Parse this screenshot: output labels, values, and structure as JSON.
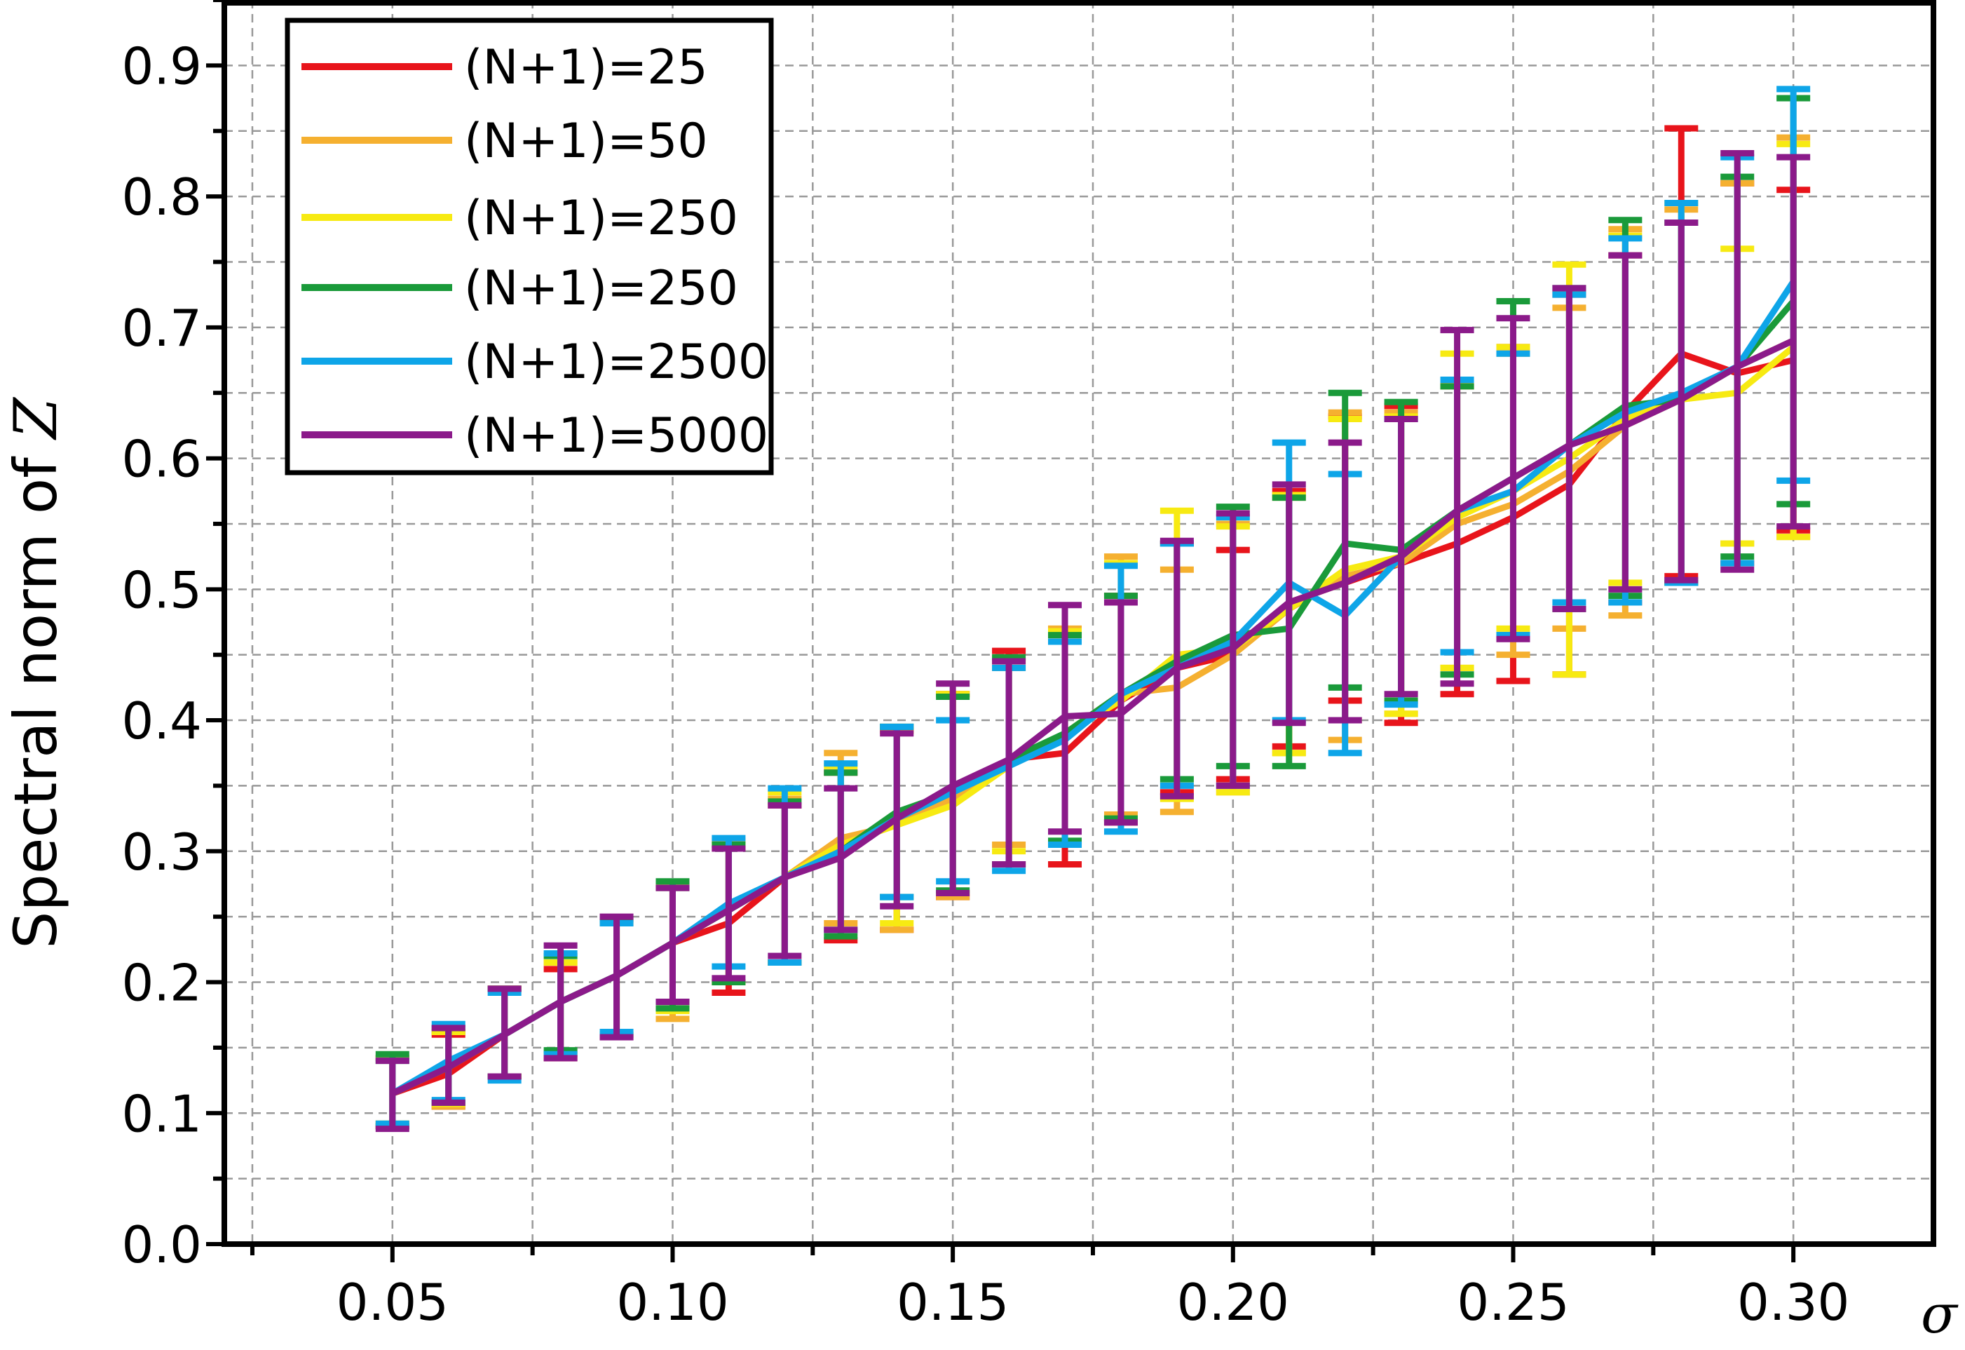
{
  "chart_data": {
    "type": "line",
    "title": "",
    "xlabel": "σ",
    "ylabel": "Spectral norm of ",
    "ylabel_symbol": "Z",
    "xlim": [
      0.02,
      0.325
    ],
    "ylim": [
      0.0,
      0.95
    ],
    "xticks": [
      "0.05",
      "0.10",
      "0.15",
      "0.20",
      "0.25",
      "0.30"
    ],
    "yticks": [
      "0.0",
      "0.1",
      "0.2",
      "0.3",
      "0.4",
      "0.5",
      "0.6",
      "0.7",
      "0.8",
      "0.9"
    ],
    "grid": true,
    "legend_placement": "top-left",
    "error_bars": true,
    "x": [
      0.05,
      0.06,
      0.07,
      0.08,
      0.09,
      0.1,
      0.11,
      0.12,
      0.13,
      0.14,
      0.15,
      0.16,
      0.17,
      0.18,
      0.19,
      0.2,
      0.21,
      0.22,
      0.23,
      0.24,
      0.25,
      0.26,
      0.27,
      0.28,
      0.29,
      0.3
    ],
    "series": [
      {
        "name": "(N+1)=25",
        "color": "#e8141b",
        "values": [
          0.115,
          0.13,
          0.16,
          0.185,
          0.205,
          0.23,
          0.245,
          0.28,
          0.3,
          0.325,
          0.345,
          0.37,
          0.375,
          0.415,
          0.44,
          0.45,
          0.49,
          0.505,
          0.52,
          0.535,
          0.555,
          0.58,
          0.635,
          0.68,
          0.665,
          0.675
        ],
        "lower": [
          0.09,
          0.105,
          0.128,
          0.142,
          0.158,
          0.18,
          0.192,
          0.215,
          0.232,
          0.24,
          0.265,
          0.29,
          0.29,
          0.322,
          0.345,
          0.355,
          0.38,
          0.415,
          0.398,
          0.42,
          0.43,
          0.435,
          0.49,
          0.51,
          0.52,
          0.545
        ],
        "upper": [
          0.142,
          0.16,
          0.195,
          0.21,
          0.248,
          0.272,
          0.302,
          0.335,
          0.36,
          0.392,
          0.42,
          0.453,
          0.465,
          0.495,
          0.535,
          0.53,
          0.575,
          0.632,
          0.64,
          0.655,
          0.685,
          0.725,
          0.755,
          0.852,
          0.81,
          0.805
        ]
      },
      {
        "name": "(N+1)=50",
        "color": "#f5b030",
        "values": [
          0.115,
          0.135,
          0.16,
          0.185,
          0.205,
          0.23,
          0.255,
          0.28,
          0.31,
          0.32,
          0.34,
          0.365,
          0.39,
          0.42,
          0.425,
          0.45,
          0.485,
          0.51,
          0.52,
          0.55,
          0.565,
          0.59,
          0.625,
          0.645,
          0.67,
          0.69
        ],
        "lower": [
          0.092,
          0.105,
          0.128,
          0.145,
          0.16,
          0.172,
          0.2,
          0.215,
          0.245,
          0.24,
          0.265,
          0.305,
          0.305,
          0.328,
          0.33,
          0.345,
          0.375,
          0.385,
          0.405,
          0.44,
          0.45,
          0.47,
          0.48,
          0.505,
          0.535,
          0.54
        ],
        "upper": [
          0.142,
          0.162,
          0.195,
          0.215,
          0.245,
          0.275,
          0.308,
          0.34,
          0.375,
          0.395,
          0.42,
          0.44,
          0.47,
          0.525,
          0.515,
          0.55,
          0.57,
          0.635,
          0.635,
          0.655,
          0.68,
          0.715,
          0.775,
          0.79,
          0.81,
          0.845
        ]
      },
      {
        "name": "(N+1)=250",
        "color": "#f7ea12",
        "values": [
          0.115,
          0.135,
          0.16,
          0.185,
          0.205,
          0.23,
          0.255,
          0.28,
          0.305,
          0.32,
          0.335,
          0.365,
          0.39,
          0.415,
          0.45,
          0.455,
          0.485,
          0.515,
          0.525,
          0.555,
          0.575,
          0.6,
          0.63,
          0.645,
          0.65,
          0.685
        ],
        "lower": [
          0.092,
          0.107,
          0.128,
          0.145,
          0.16,
          0.178,
          0.2,
          0.215,
          0.24,
          0.245,
          0.268,
          0.3,
          0.305,
          0.325,
          0.34,
          0.345,
          0.375,
          0.4,
          0.405,
          0.44,
          0.47,
          0.435,
          0.505,
          0.505,
          0.535,
          0.54
        ],
        "upper": [
          0.14,
          0.162,
          0.195,
          0.215,
          0.245,
          0.272,
          0.305,
          0.345,
          0.365,
          0.392,
          0.42,
          0.445,
          0.468,
          0.52,
          0.56,
          0.548,
          0.572,
          0.63,
          0.632,
          0.68,
          0.685,
          0.748,
          0.77,
          0.795,
          0.76,
          0.84
        ]
      },
      {
        "name": "(N+1)=250",
        "color": "#1a9a3a",
        "values": [
          0.115,
          0.135,
          0.16,
          0.185,
          0.205,
          0.23,
          0.255,
          0.28,
          0.3,
          0.33,
          0.345,
          0.37,
          0.39,
          0.42,
          0.445,
          0.465,
          0.47,
          0.535,
          0.53,
          0.56,
          0.585,
          0.61,
          0.64,
          0.645,
          0.67,
          0.72
        ],
        "lower": [
          0.09,
          0.108,
          0.128,
          0.148,
          0.16,
          0.18,
          0.2,
          0.215,
          0.235,
          0.265,
          0.27,
          0.29,
          0.308,
          0.325,
          0.355,
          0.365,
          0.365,
          0.425,
          0.415,
          0.435,
          0.465,
          0.485,
          0.495,
          0.505,
          0.525,
          0.565
        ],
        "upper": [
          0.145,
          0.165,
          0.195,
          0.22,
          0.248,
          0.277,
          0.305,
          0.338,
          0.36,
          0.395,
          0.418,
          0.448,
          0.465,
          0.495,
          0.535,
          0.563,
          0.57,
          0.65,
          0.643,
          0.655,
          0.72,
          0.73,
          0.782,
          0.78,
          0.815,
          0.875
        ]
      },
      {
        "name": "(N+1)=2500",
        "color": "#0ea5e8",
        "values": [
          0.115,
          0.14,
          0.16,
          0.185,
          0.205,
          0.23,
          0.26,
          0.28,
          0.3,
          0.325,
          0.345,
          0.365,
          0.385,
          0.42,
          0.44,
          0.46,
          0.505,
          0.48,
          0.525,
          0.56,
          0.575,
          0.61,
          0.635,
          0.65,
          0.67,
          0.735
        ],
        "lower": [
          0.092,
          0.11,
          0.125,
          0.145,
          0.162,
          0.185,
          0.212,
          0.215,
          0.24,
          0.265,
          0.277,
          0.285,
          0.305,
          0.315,
          0.35,
          0.35,
          0.4,
          0.375,
          0.412,
          0.452,
          0.465,
          0.49,
          0.49,
          0.505,
          0.52,
          0.583
        ],
        "upper": [
          0.14,
          0.168,
          0.192,
          0.222,
          0.245,
          0.272,
          0.31,
          0.348,
          0.367,
          0.395,
          0.4,
          0.44,
          0.46,
          0.518,
          0.535,
          0.555,
          0.612,
          0.588,
          0.63,
          0.66,
          0.68,
          0.725,
          0.768,
          0.795,
          0.83,
          0.882
        ]
      },
      {
        "name": "(N+1)=5000",
        "color": "#8b1a8a",
        "values": [
          0.115,
          0.135,
          0.16,
          0.185,
          0.205,
          0.23,
          0.255,
          0.28,
          0.295,
          0.325,
          0.35,
          0.37,
          0.403,
          0.405,
          0.44,
          0.455,
          0.49,
          0.505,
          0.525,
          0.56,
          0.585,
          0.61,
          0.625,
          0.645,
          0.67,
          0.69
        ],
        "lower": [
          0.088,
          0.108,
          0.128,
          0.142,
          0.158,
          0.185,
          0.203,
          0.22,
          0.24,
          0.258,
          0.268,
          0.29,
          0.315,
          0.322,
          0.342,
          0.35,
          0.398,
          0.4,
          0.42,
          0.428,
          0.462,
          0.485,
          0.5,
          0.507,
          0.515,
          0.548
        ],
        "upper": [
          0.14,
          0.165,
          0.195,
          0.228,
          0.25,
          0.272,
          0.302,
          0.335,
          0.348,
          0.39,
          0.428,
          0.445,
          0.488,
          0.49,
          0.537,
          0.558,
          0.58,
          0.612,
          0.63,
          0.698,
          0.707,
          0.73,
          0.755,
          0.78,
          0.833,
          0.83
        ]
      }
    ]
  }
}
